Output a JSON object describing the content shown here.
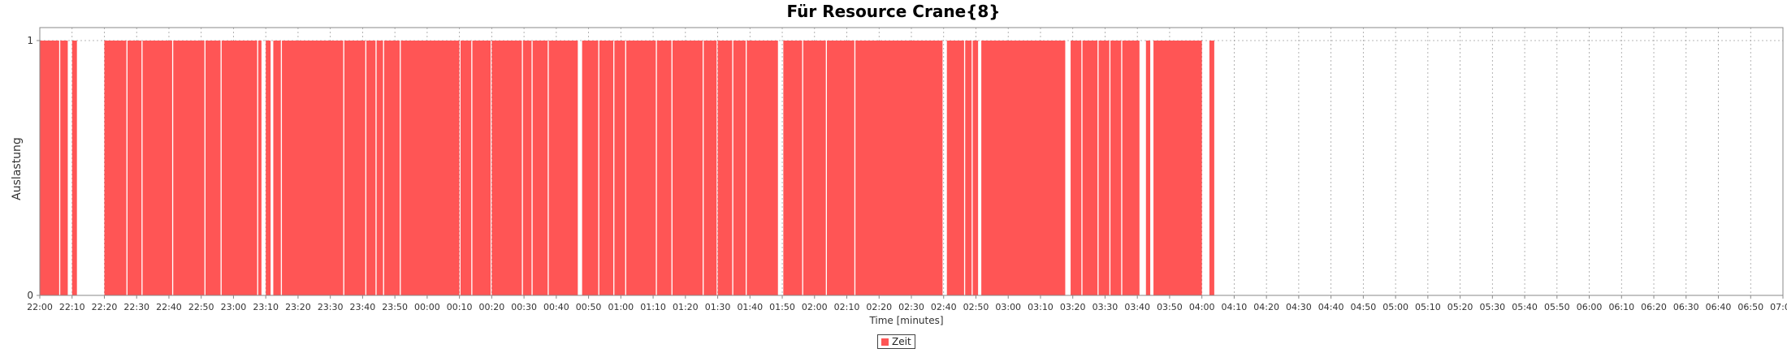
{
  "colors": {
    "bar": "#ff5555",
    "grid": "#a0a0a0",
    "axis": "#888888"
  },
  "chart_data": {
    "type": "bar",
    "title": "Für Resource Crane{8}",
    "xlabel": "Time [minutes]",
    "ylabel": "Auslastung",
    "xlim_minutes": [
      0,
      540
    ],
    "ylim": [
      0,
      1
    ],
    "y_ticks": [
      "0",
      "1"
    ],
    "x_tick_labels": [
      "22:00",
      "22:10",
      "22:20",
      "22:30",
      "22:40",
      "22:50",
      "23:00",
      "23:10",
      "23:20",
      "23:30",
      "23:40",
      "23:50",
      "00:00",
      "00:10",
      "00:20",
      "00:30",
      "00:40",
      "00:50",
      "01:00",
      "01:10",
      "01:20",
      "01:30",
      "01:40",
      "01:50",
      "02:00",
      "02:10",
      "02:20",
      "02:30",
      "02:40",
      "02:50",
      "03:00",
      "03:10",
      "03:20",
      "03:30",
      "03:40",
      "03:50",
      "04:00",
      "04:10",
      "04:20",
      "04:30",
      "04:40",
      "04:50",
      "05:00",
      "05:10",
      "05:20",
      "05:30",
      "05:40",
      "05:50",
      "06:00",
      "06:10",
      "06:20",
      "06:30",
      "06:40",
      "06:50",
      "07:00"
    ],
    "grid": true,
    "legend_position": "bottom-center",
    "series": [
      {
        "name": "Zeit",
        "busy_intervals": [
          [
            "22:00:00",
            "22:06:00"
          ],
          [
            "22:06:20",
            "22:08:40"
          ],
          [
            "22:10:00",
            "22:11:30"
          ],
          [
            "22:20:00",
            "22:26:50"
          ],
          [
            "22:27:10",
            "22:31:30"
          ],
          [
            "22:31:50",
            "22:41:00"
          ],
          [
            "22:41:20",
            "22:51:00"
          ],
          [
            "22:51:20",
            "22:56:00"
          ],
          [
            "22:56:20",
            "23:07:20"
          ],
          [
            "23:07:40",
            "23:08:40"
          ],
          [
            "23:10:00",
            "23:11:30"
          ],
          [
            "23:12:20",
            "23:14:40"
          ],
          [
            "23:15:00",
            "23:34:00"
          ],
          [
            "23:34:20",
            "23:40:50"
          ],
          [
            "23:41:10",
            "23:44:00"
          ],
          [
            "23:44:20",
            "23:46:20"
          ],
          [
            "23:46:40",
            "23:51:30"
          ],
          [
            "23:51:50",
            "00:10:00"
          ],
          [
            "00:10:20",
            "00:13:40"
          ],
          [
            "00:14:00",
            "00:19:40"
          ],
          [
            "00:20:00",
            "00:29:20"
          ],
          [
            "00:29:40",
            "00:32:20"
          ],
          [
            "00:32:40",
            "00:37:20"
          ],
          [
            "00:37:40",
            "00:46:40"
          ],
          [
            "00:48:00",
            "00:53:00"
          ],
          [
            "00:53:20",
            "00:57:40"
          ],
          [
            "00:58:00",
            "01:01:20"
          ],
          [
            "01:01:40",
            "01:10:50"
          ],
          [
            "01:11:10",
            "01:15:40"
          ],
          [
            "01:16:00",
            "01:25:20"
          ],
          [
            "01:25:40",
            "01:29:40"
          ],
          [
            "01:30:00",
            "01:34:30"
          ],
          [
            "01:34:50",
            "01:38:40"
          ],
          [
            "01:39:00",
            "01:48:40"
          ],
          [
            "01:50:20",
            "01:56:10"
          ],
          [
            "01:56:30",
            "02:03:30"
          ],
          [
            "02:03:50",
            "02:12:20"
          ],
          [
            "02:12:40",
            "02:39:40"
          ],
          [
            "02:41:00",
            "02:46:20"
          ],
          [
            "02:46:40",
            "02:48:40"
          ],
          [
            "02:49:00",
            "02:50:40"
          ],
          [
            "02:51:40",
            "03:17:40"
          ],
          [
            "03:19:20",
            "03:22:40"
          ],
          [
            "03:23:00",
            "03:27:40"
          ],
          [
            "03:28:00",
            "03:31:20"
          ],
          [
            "03:31:40",
            "03:35:00"
          ],
          [
            "03:35:20",
            "03:40:40"
          ],
          [
            "03:42:40",
            "03:44:00"
          ],
          [
            "03:45:00",
            "04:00:00"
          ],
          [
            "04:02:20",
            "04:03:50"
          ]
        ]
      }
    ]
  }
}
